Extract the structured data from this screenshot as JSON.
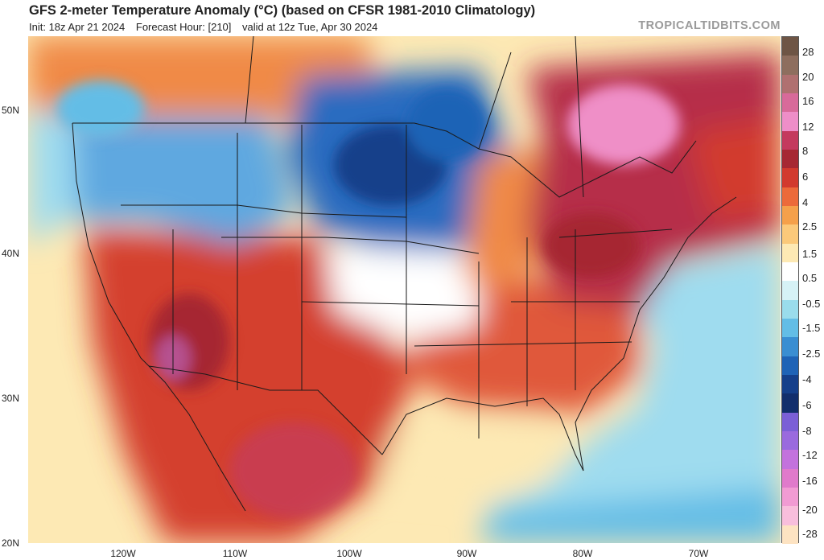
{
  "header": {
    "title": "GFS 2-meter Temperature Anomaly (°C) (based on CFSR 1981-2010 Climatology)",
    "init": "Init: 18z Apr 21 2024",
    "forecast_hour": "Forecast Hour: [210]",
    "valid": "valid at 12z Tue, Apr 30 2024",
    "credit": "TROPICALTIDBITS.COM"
  },
  "axes": {
    "lat_labels": [
      "50N",
      "40N",
      "30N",
      "20N"
    ],
    "lon_labels": [
      "120W",
      "110W",
      "100W",
      "90W",
      "80W",
      "70W"
    ]
  },
  "colorbar": {
    "labels": [
      "28",
      "20",
      "16",
      "12",
      "8",
      "6",
      "4",
      "2.5",
      "1.5",
      "0.5",
      "-0.5",
      "-1.5",
      "-2.5",
      "-4",
      "-6",
      "-8",
      "-12",
      "-16",
      "-20",
      "-28"
    ],
    "colors": [
      "#6e5545",
      "#8e6e5e",
      "#b07070",
      "#d86a9a",
      "#ee8ec8",
      "#c43a5e",
      "#a62833",
      "#d23a2e",
      "#ec6a3a",
      "#f5a04a",
      "#fbc97a",
      "#fde9b4",
      "#ffffff",
      "#d6f2f6",
      "#9adcec",
      "#63bde6",
      "#3a8ed2",
      "#1f63b6",
      "#153f8a",
      "#122e6c",
      "#7b5fd6",
      "#9a6ade",
      "#c372dd",
      "#e07acb",
      "#f19bd3",
      "#f8bedc",
      "#fde3c2"
    ]
  },
  "map": {
    "regions": [
      {
        "name": "atlantic-ocean-cool-anomaly",
        "color": "#9fdcef"
      },
      {
        "name": "pacific-ocean-mild-anomaly",
        "color": "#fde9b4"
      },
      {
        "name": "northern-plains-cold-anomaly",
        "color": "#2a6cc0"
      },
      {
        "name": "pacific-northwest-cold-anomaly",
        "color": "#5fa8e0"
      },
      {
        "name": "southwest-warm-anomaly",
        "color": "#d4402f"
      },
      {
        "name": "southeast-warm-anomaly",
        "color": "#e0583a"
      },
      {
        "name": "northeast-very-warm-anomaly",
        "color": "#b62e48"
      },
      {
        "name": "quebec-hot-anomaly",
        "color": "#ef8fc7"
      },
      {
        "name": "great-lakes-warm-anomaly",
        "color": "#f08a46"
      },
      {
        "name": "gulf-of-mexico-mild-anomaly",
        "color": "#fde9b4"
      },
      {
        "name": "caribbean-cool-anomaly",
        "color": "#9adcec"
      }
    ]
  }
}
